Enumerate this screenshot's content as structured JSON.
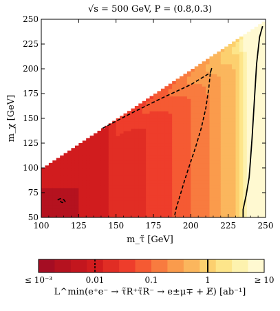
{
  "chart_data": {
    "type": "heatmap",
    "title": "√s = 500 GeV, P = (0.8,0.3)",
    "xlabel": "m_τ̃ [GeV]",
    "ylabel": "m_χ [GeV]",
    "xlim": [
      100,
      250
    ],
    "ylim": [
      50,
      250
    ],
    "x_ticks": [
      "100",
      "125",
      "150",
      "175",
      "200",
      "225",
      "250"
    ],
    "y_ticks": [
      "50",
      "75",
      "100",
      "125",
      "150",
      "175",
      "200",
      "225",
      "250"
    ],
    "grid": false,
    "allowed_region": "m_χ < m_τ̃ (upper-left triangle blank)",
    "contours": [
      {
        "style": "dashed",
        "level_ab_inv": 0.01,
        "points": [
          [
            141,
            140
          ],
          [
            160,
            155
          ],
          [
            180,
            170
          ],
          [
            200,
            184
          ],
          [
            213,
            196
          ],
          [
            214,
            201
          ],
          [
            213,
            195
          ],
          [
            212,
            180
          ],
          [
            210,
            160
          ],
          [
            207,
            140
          ],
          [
            203,
            120
          ],
          [
            199,
            102
          ],
          [
            196,
            88
          ],
          [
            193,
            73
          ],
          [
            190,
            58
          ],
          [
            189,
            50
          ]
        ]
      },
      {
        "style": "solid",
        "level_ab_inv": 1,
        "points": [
          [
            248,
            243
          ],
          [
            246,
            232
          ],
          [
            244,
            205
          ],
          [
            243,
            180
          ],
          [
            242,
            155
          ],
          [
            241,
            130
          ],
          [
            240,
            110
          ],
          [
            239,
            90
          ],
          [
            237,
            72
          ],
          [
            235,
            58
          ],
          [
            235,
            50
          ]
        ]
      },
      {
        "style": "dashed",
        "level_ab_inv": 0.01,
        "points": [
          [
            111,
            68
          ],
          [
            113,
            69
          ],
          [
            115,
            68
          ],
          [
            116,
            66
          ],
          [
            114,
            65
          ],
          [
            111,
            68
          ]
        ]
      }
    ],
    "colorbar": {
      "label": "L^min(e⁺e⁻ → τ̃R⁺τ̃R⁻ → e±μ∓ + E̸) [ab⁻¹]",
      "tick_labels": [
        "≤ 10⁻³",
        "0.01",
        "0.1",
        "1",
        "≥ 10"
      ],
      "colors": [
        "#a50d23",
        "#b5121f",
        "#c3161e",
        "#d11c1e",
        "#e12d24",
        "#ee3d2b",
        "#f55a33",
        "#f87b3f",
        "#fa9b4c",
        "#fbb65d",
        "#fcd06f",
        "#fde58a",
        "#fdf2ae",
        "#fff9d1"
      ],
      "marked_levels": [
        {
          "value": 0.01,
          "style": "dashed"
        },
        {
          "value": 1,
          "style": "solid"
        }
      ]
    }
  }
}
